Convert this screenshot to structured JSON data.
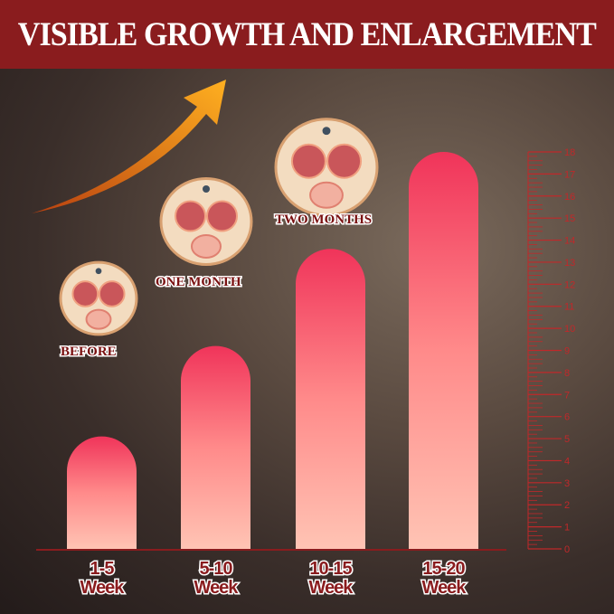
{
  "header": {
    "title": "VISIBLE GROWTH AND ENLARGEMENT"
  },
  "stages": [
    "BEFORE",
    "ONE MONTH",
    "TWO MONTHS"
  ],
  "colors": {
    "header": "#8a1c1e",
    "bar_top": "#f0345a",
    "bar_bottom": "#ffc4b4",
    "arrow": "#f5a020",
    "scale": "#c0282a"
  },
  "chart_data": {
    "type": "bar",
    "categories": [
      [
        "1-5",
        "Week"
      ],
      [
        "5-10",
        "Week"
      ],
      [
        "10-15",
        "Week"
      ],
      [
        "15-20",
        "Week"
      ]
    ],
    "values": [
      5.1,
      9.2,
      13.6,
      18
    ],
    "ylim": [
      0,
      18
    ],
    "yticks": [
      0,
      1,
      2,
      3,
      4,
      5,
      6,
      7,
      8,
      9,
      10,
      11,
      12,
      13,
      14,
      15,
      16,
      17,
      18
    ],
    "y_axis_side": "right",
    "grid": false
  }
}
